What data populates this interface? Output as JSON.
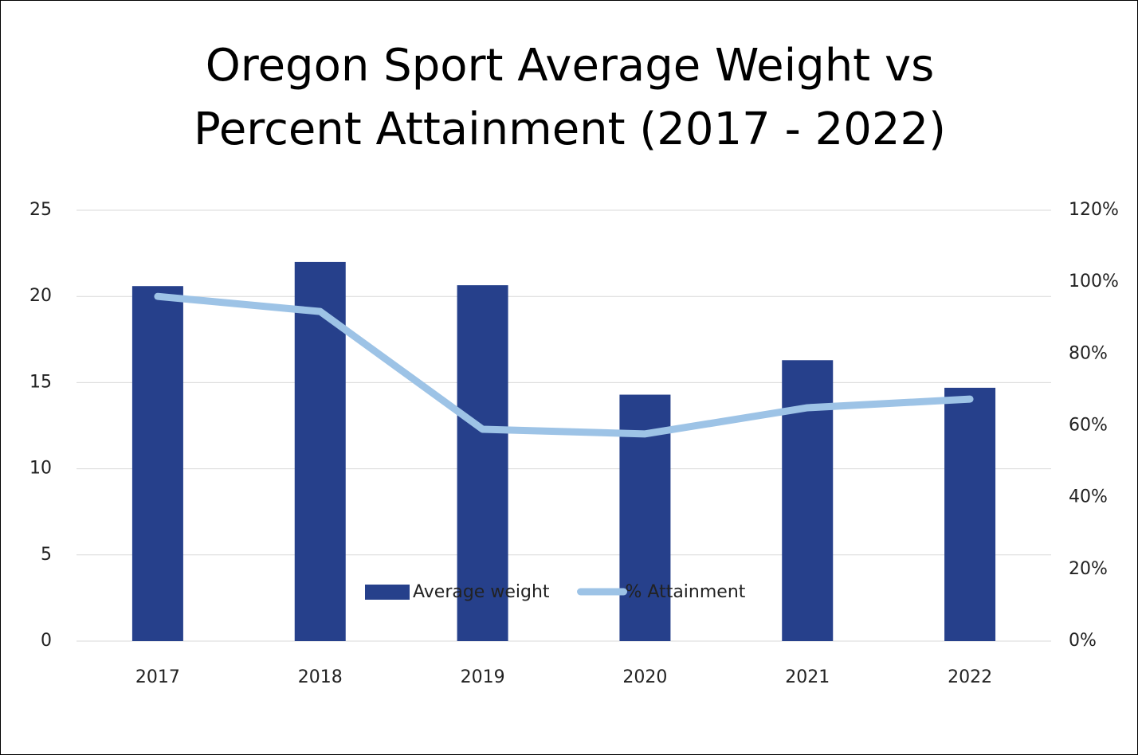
{
  "chart_data": {
    "type": "bar-line",
    "title": "Oregon Sport Average Weight vs Percent Attainment (2017 - 2022)",
    "categories": [
      "2017",
      "2018",
      "2019",
      "2020",
      "2021",
      "2022"
    ],
    "series": [
      {
        "name": "Average weight",
        "type": "bar",
        "color": "#26408b",
        "values": [
          20.6,
          22.0,
          20.65,
          14.3,
          16.3,
          14.7
        ]
      },
      {
        "name": "% Attainment",
        "type": "line",
        "color": "#9dc3e6",
        "axis": "y2",
        "values": [
          96,
          91.8,
          59,
          57.7,
          65,
          67.4
        ]
      }
    ],
    "ylim": [
      0,
      25
    ],
    "yticks": [
      0,
      5,
      10,
      15,
      20,
      25
    ],
    "y2lim": [
      0,
      120
    ],
    "y2ticks": [
      {
        "value": 0,
        "label": "0%"
      },
      {
        "value": 20,
        "label": "20%"
      },
      {
        "value": 40,
        "label": "40%"
      },
      {
        "value": 60,
        "label": "60%"
      },
      {
        "value": 80,
        "label": "80%"
      },
      {
        "value": 100,
        "label": "100%"
      },
      {
        "value": 120,
        "label": "120%"
      }
    ],
    "grid": true,
    "legend": "bottom"
  }
}
